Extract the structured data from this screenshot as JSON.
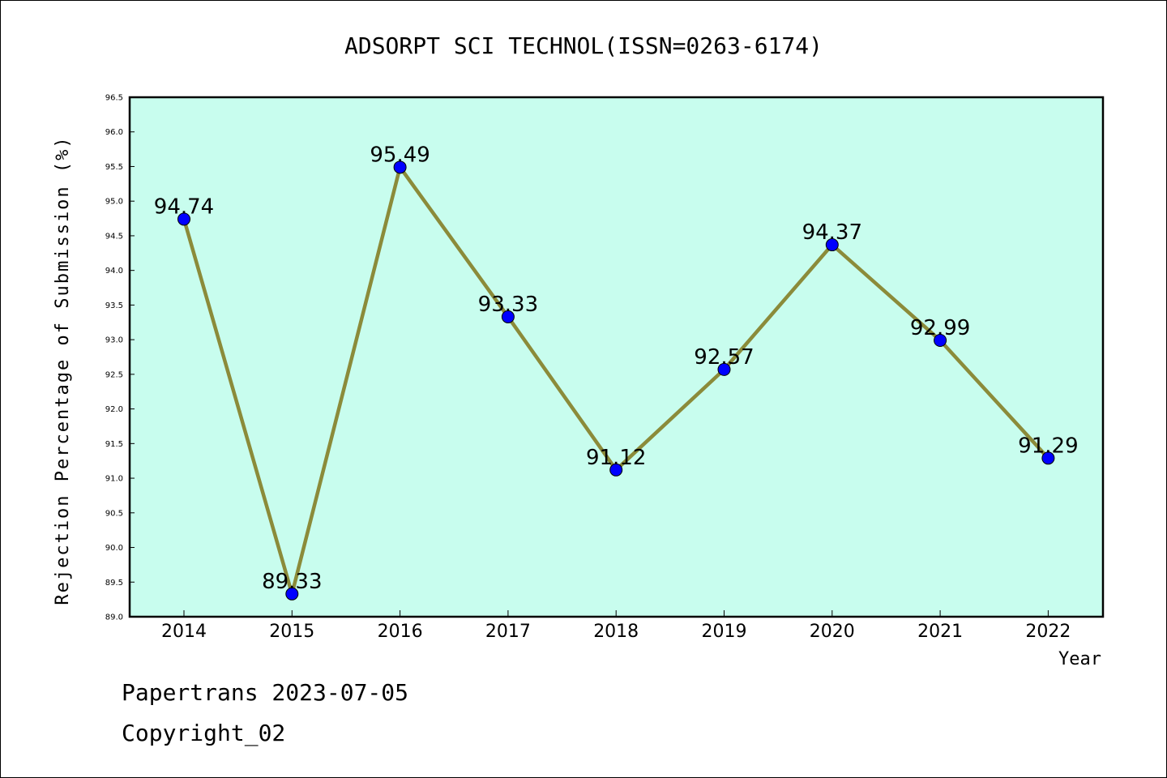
{
  "chart_data": {
    "type": "line",
    "title": "ADSORPT SCI TECHNOL(ISSN=0263-6174)",
    "xlabel": "Year",
    "ylabel": "Rejection Percentage of Submission (%)",
    "x": [
      "2014",
      "2015",
      "2016",
      "2017",
      "2018",
      "2019",
      "2020",
      "2021",
      "2022"
    ],
    "series": [
      {
        "values": [
          94.74,
          89.33,
          95.49,
          93.33,
          91.12,
          92.57,
          94.37,
          92.99,
          91.29
        ]
      }
    ],
    "data_labels": [
      "94.74",
      "89.33",
      "95.49",
      "93.33",
      "91.12",
      "92.57",
      "94.37",
      "92.99",
      "91.29"
    ],
    "ylim": [
      89.0,
      96.5
    ],
    "yticks": [
      "89.0",
      "89.5",
      "90.0",
      "90.5",
      "91.0",
      "91.5",
      "92.0",
      "92.5",
      "93.0",
      "93.5",
      "94.0",
      "94.5",
      "95.0",
      "95.5",
      "96.0",
      "96.5"
    ],
    "grid": false,
    "colors": {
      "plot_background": "#c8fdee",
      "line": "#8b8b3a",
      "marker": "#0000ff"
    }
  },
  "footer": {
    "line1": "Papertrans 2023-07-05",
    "line2": "Copyright_02"
  }
}
